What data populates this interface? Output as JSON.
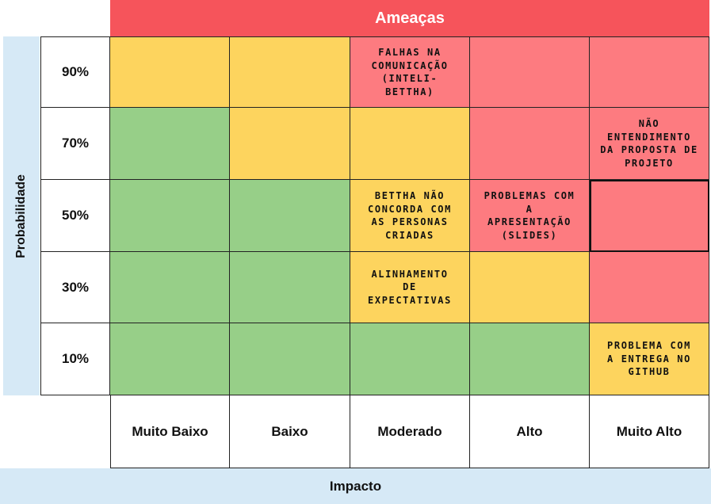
{
  "title": "Ameaças",
  "y_axis_label": "Probabilidade",
  "x_axis_label": "Impacto",
  "probability_levels": [
    "90%",
    "70%",
    "50%",
    "30%",
    "10%"
  ],
  "impact_levels": [
    "Muito Baixo",
    "Baixo",
    "Moderado",
    "Alto",
    "Muito Alto"
  ],
  "colors": {
    "green": "#97cf88",
    "yellow": "#fdd45e",
    "red": "#fd7b80",
    "header_red": "#f6545b",
    "axis_blue": "#d6e9f6"
  },
  "matrix": [
    [
      "yellow",
      "yellow",
      "red",
      "red",
      "red"
    ],
    [
      "green",
      "yellow",
      "yellow",
      "red",
      "red"
    ],
    [
      "green",
      "green",
      "yellow",
      "red",
      "red"
    ],
    [
      "green",
      "green",
      "yellow",
      "yellow",
      "red"
    ],
    [
      "green",
      "green",
      "green",
      "green",
      "yellow"
    ]
  ],
  "risks": [
    {
      "row": 0,
      "col": 2,
      "text": "FALHAS NA\nCOMUNICAÇÃO\n(INTELI-\nBETTHA)"
    },
    {
      "row": 1,
      "col": 4,
      "text": "NÃO\nENTENDIMENTO\nDA PROPOSTA DE\nPROJETO"
    },
    {
      "row": 2,
      "col": 2,
      "text": "BETTHA NÃO\nCONCORDA COM\nAS PERSONAS\nCRIADAS"
    },
    {
      "row": 2,
      "col": 3,
      "text": "PROBLEMAS COM\nA\nAPRESENTAÇÃO\n(SLIDES)"
    },
    {
      "row": 3,
      "col": 2,
      "text": "ALINHAMENTO\nDE\nEXPECTATIVAS"
    },
    {
      "row": 4,
      "col": 4,
      "text": "PROBLEMA COM\nA ENTREGA NO\nGITHUB"
    }
  ]
}
